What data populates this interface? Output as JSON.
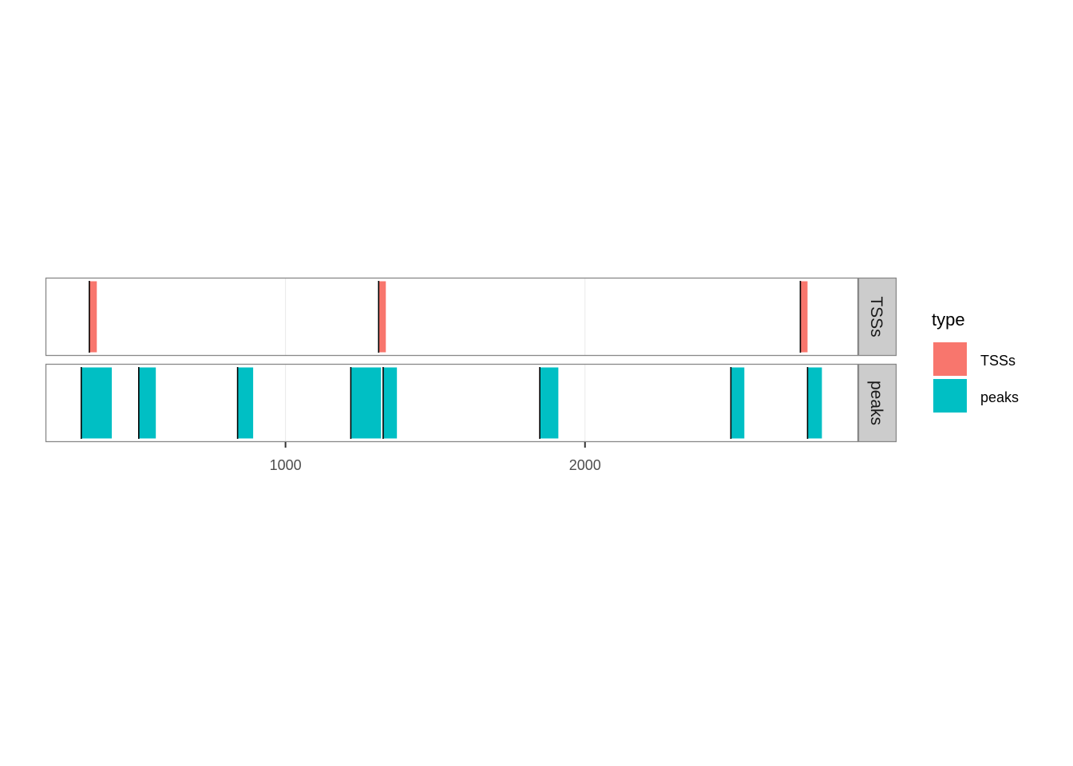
{
  "chart_data": {
    "type": "bar",
    "title": "",
    "xlabel": "",
    "ylabel": "",
    "xlim": [
      200,
      2911
    ],
    "x_ticks": [
      1000,
      2000
    ],
    "grid": true,
    "legend": {
      "title": "type",
      "position": "right",
      "entries": [
        "TSSs",
        "peaks"
      ]
    },
    "colors": {
      "TSSs": "#F8766D",
      "peaks": "#00BFC4"
    },
    "facets": [
      {
        "label": "TSSs",
        "type": "TSSs",
        "intervals": [
          [
            345,
            370
          ],
          [
            1311,
            1335
          ],
          [
            2719,
            2743
          ]
        ]
      },
      {
        "label": "peaks",
        "type": "peaks",
        "intervals": [
          [
            318,
            420
          ],
          [
            510,
            567
          ],
          [
            840,
            892
          ],
          [
            1218,
            1319
          ],
          [
            1326,
            1372
          ],
          [
            1849,
            1911
          ],
          [
            2487,
            2532
          ],
          [
            2743,
            2791
          ]
        ]
      }
    ]
  }
}
